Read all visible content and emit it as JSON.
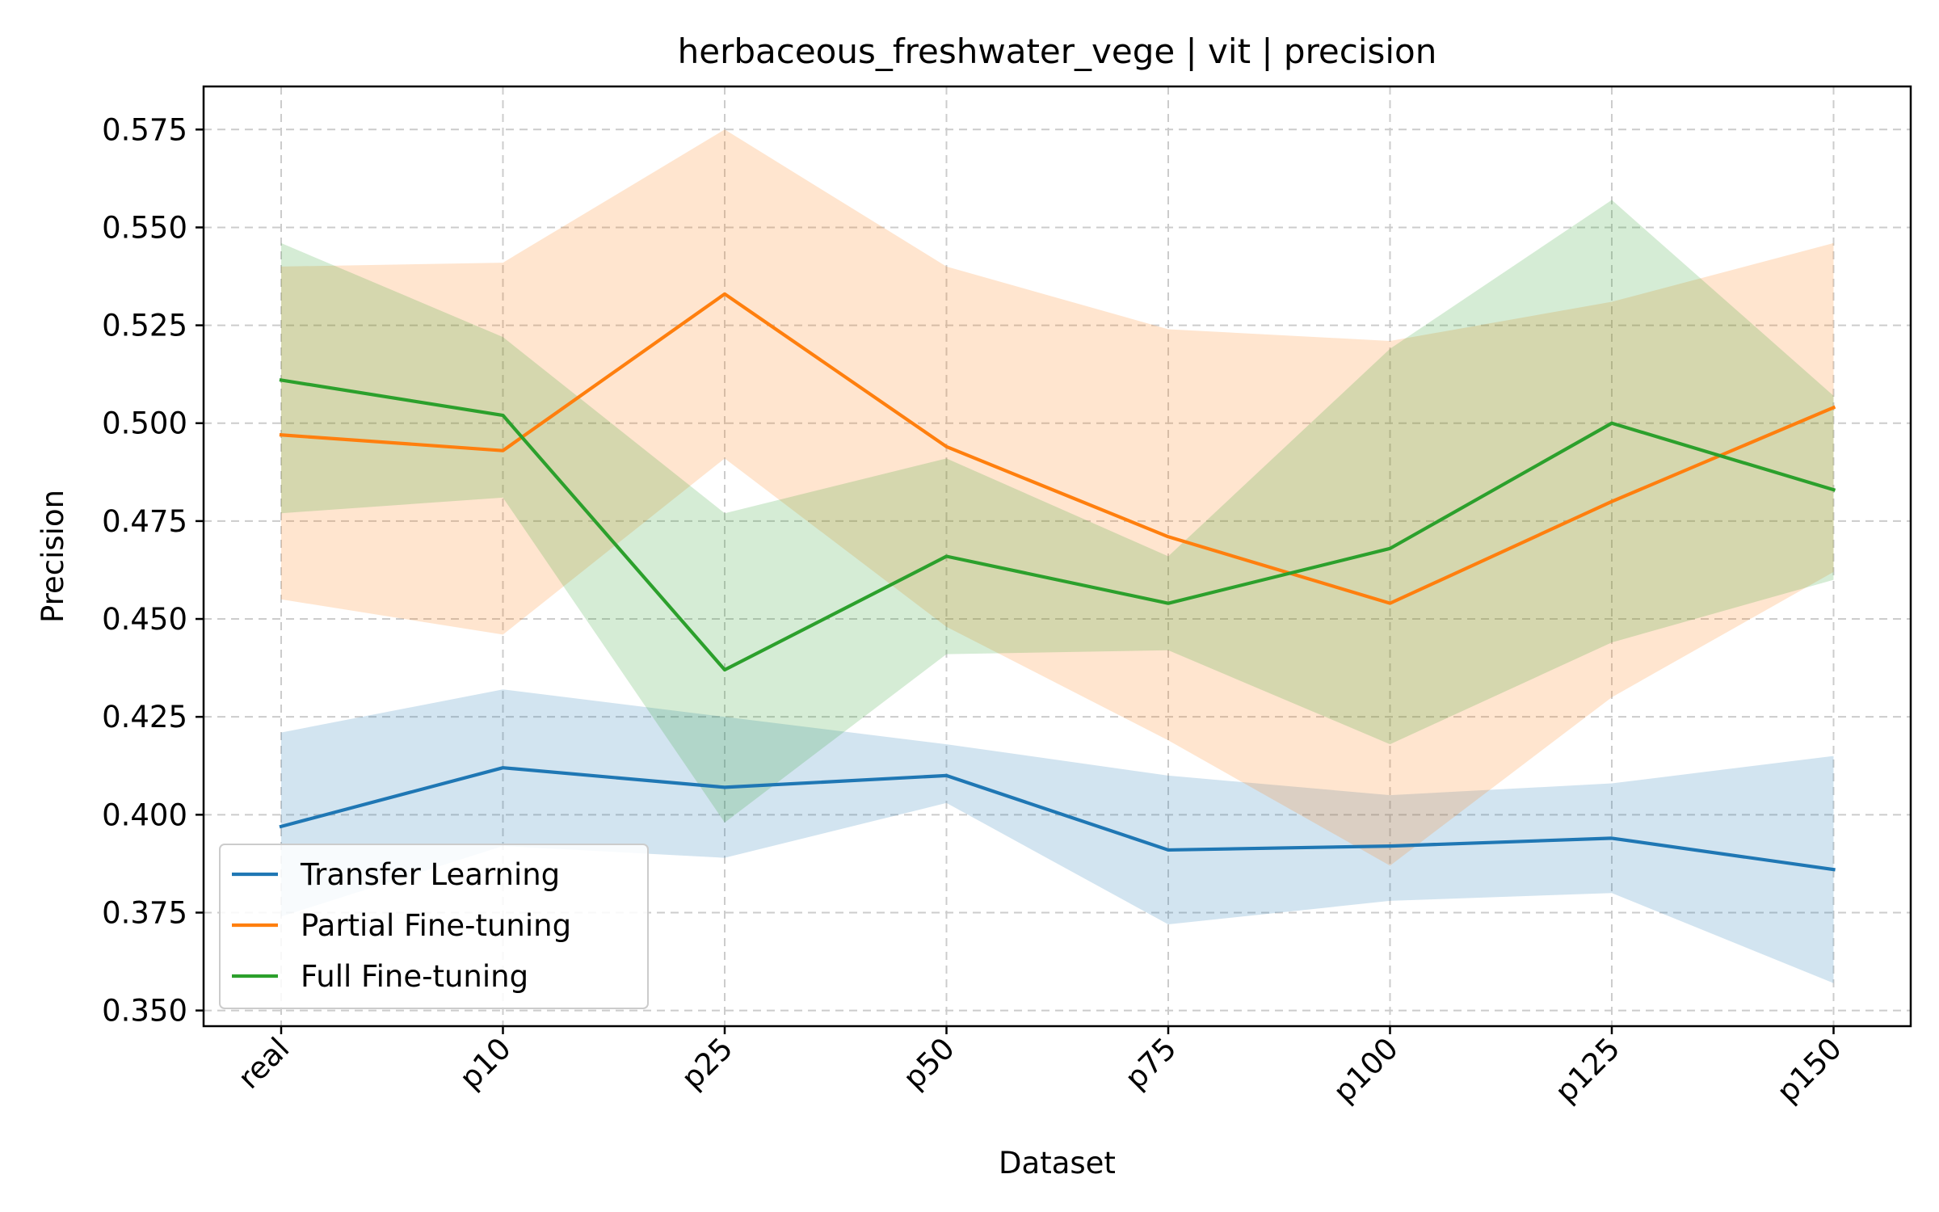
{
  "chart_data": {
    "type": "line",
    "title": "herbaceous_freshwater_vege | vit | precision",
    "xlabel": "Dataset",
    "ylabel": "Precision",
    "categories": [
      "real",
      "p10",
      "p25",
      "p50",
      "p75",
      "p100",
      "p125",
      "p150"
    ],
    "ylim": [
      0.346,
      0.586
    ],
    "yticks": [
      0.35,
      0.375,
      0.4,
      0.425,
      0.45,
      0.475,
      0.5,
      0.525,
      0.55,
      0.575
    ],
    "ytick_labels": [
      "0.350",
      "0.375",
      "0.400",
      "0.425",
      "0.450",
      "0.475",
      "0.500",
      "0.525",
      "0.550",
      "0.575"
    ],
    "grid": true,
    "legend_position": "lower-left",
    "series": [
      {
        "name": "Transfer Learning",
        "color": "#1f77b4",
        "values": [
          0.397,
          0.412,
          0.407,
          0.41,
          0.391,
          0.392,
          0.394,
          0.386
        ],
        "lower": [
          0.374,
          0.392,
          0.389,
          0.403,
          0.372,
          0.378,
          0.38,
          0.357
        ],
        "upper": [
          0.421,
          0.432,
          0.425,
          0.418,
          0.41,
          0.405,
          0.408,
          0.415
        ]
      },
      {
        "name": "Partial Fine-tuning",
        "color": "#ff7f0e",
        "values": [
          0.497,
          0.493,
          0.533,
          0.494,
          0.471,
          0.454,
          0.48,
          0.504
        ],
        "lower": [
          0.455,
          0.446,
          0.491,
          0.448,
          0.419,
          0.387,
          0.43,
          0.462
        ],
        "upper": [
          0.54,
          0.541,
          0.575,
          0.54,
          0.524,
          0.521,
          0.531,
          0.546
        ]
      },
      {
        "name": "Full Fine-tuning",
        "color": "#2ca02c",
        "values": [
          0.511,
          0.502,
          0.437,
          0.466,
          0.454,
          0.468,
          0.5,
          0.483
        ],
        "lower": [
          0.477,
          0.481,
          0.398,
          0.441,
          0.442,
          0.418,
          0.444,
          0.46
        ],
        "upper": [
          0.546,
          0.522,
          0.477,
          0.491,
          0.466,
          0.519,
          0.557,
          0.507
        ]
      }
    ]
  }
}
